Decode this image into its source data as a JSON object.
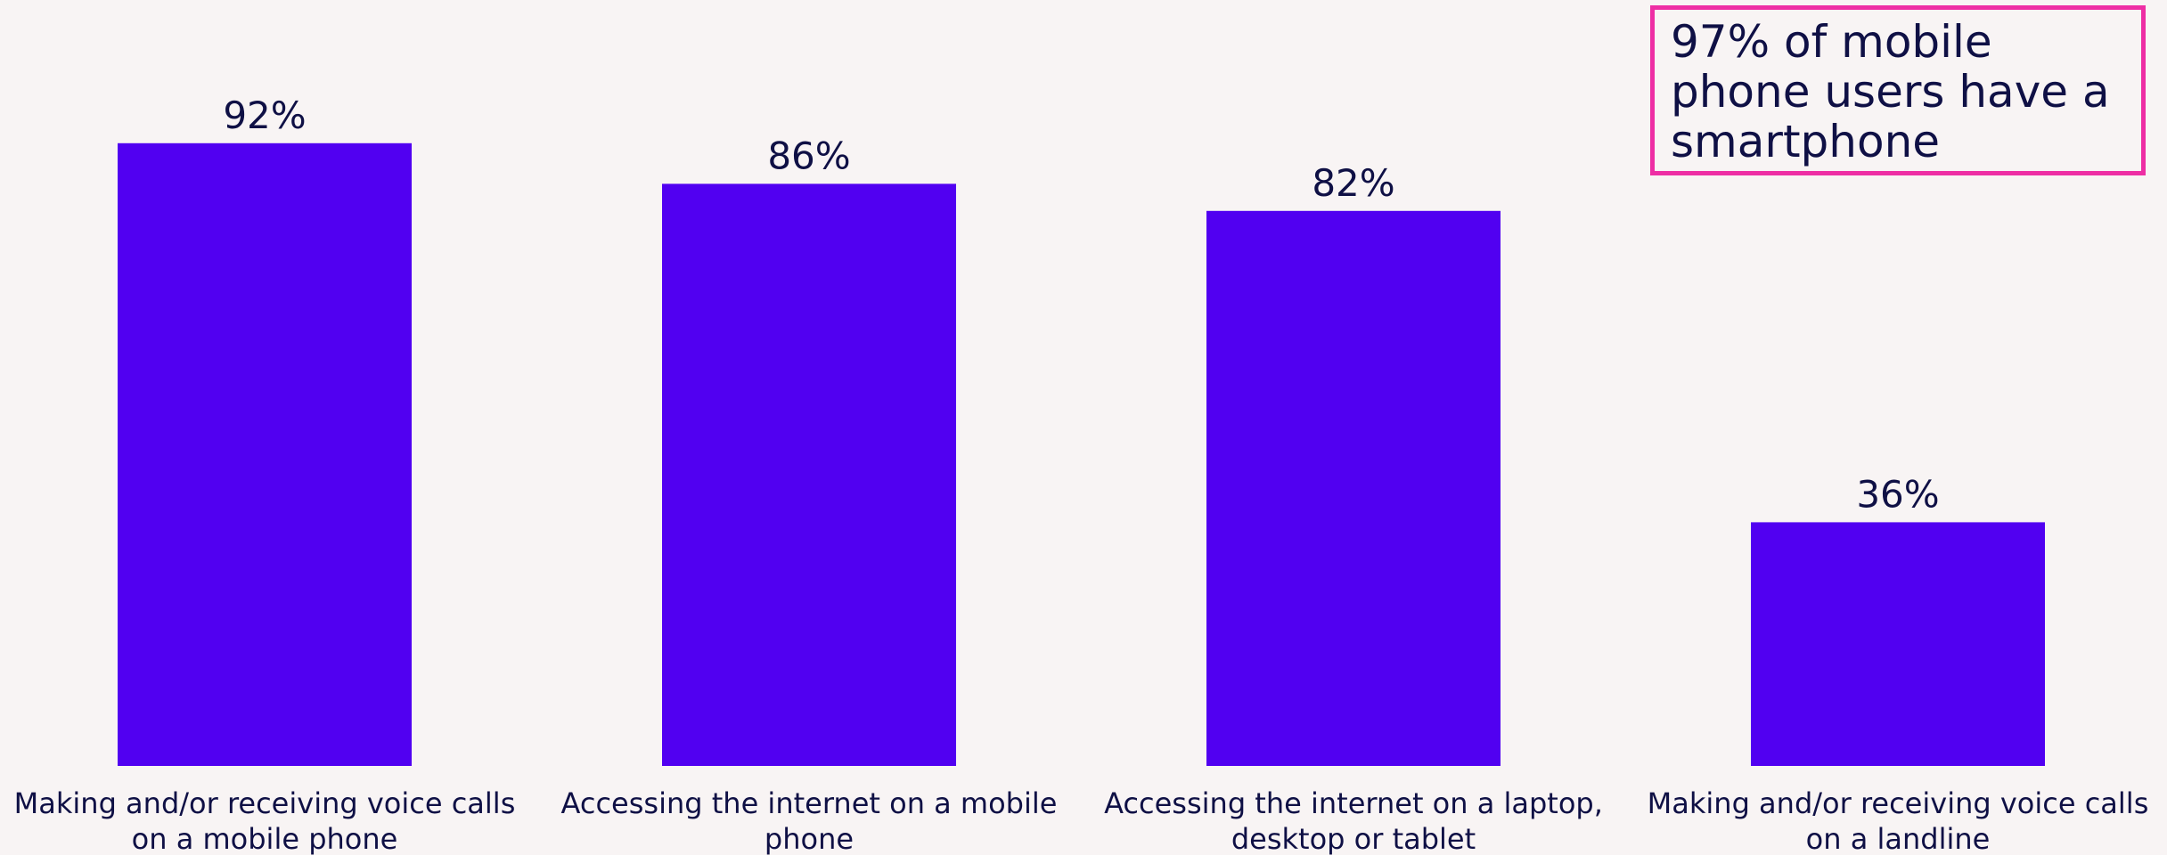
{
  "chart_data": {
    "type": "bar",
    "categories": [
      [
        "Making and/or receiving voice calls",
        "on a mobile phone"
      ],
      [
        "Accessing the internet on a mobile",
        "phone"
      ],
      [
        "Accessing the internet on a laptop,",
        "desktop or tablet"
      ],
      [
        "Making and/or receiving voice calls",
        "on a landline"
      ]
    ],
    "values": [
      92,
      86,
      82,
      36
    ],
    "value_labels": [
      "92%",
      "86%",
      "82%",
      "36%"
    ],
    "unit": "%",
    "ylim": [
      0,
      100
    ],
    "grid": false,
    "bar_color": "#5100f1"
  },
  "callout": {
    "text": "97% of mobile phone users have a smartphone",
    "border_color": "#ee2ea4"
  }
}
